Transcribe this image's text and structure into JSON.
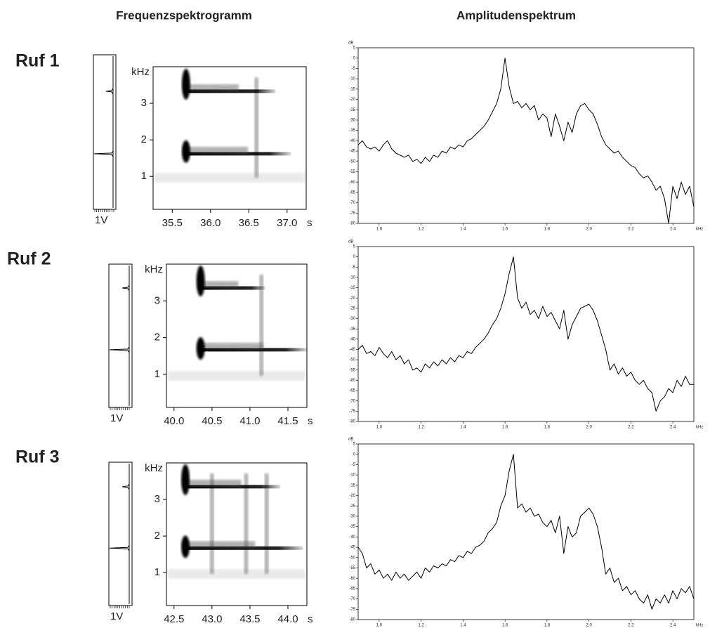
{
  "column_titles": [
    "Frequenzspektrogramm",
    "Amplitudenspektrum"
  ],
  "row_labels": [
    "Ruf 1",
    "Ruf 2",
    "Ruf 3"
  ],
  "chart_data": [
    {
      "type": "profile",
      "label": "1V",
      "ylim": [
        0.1,
        4.0
      ],
      "peaks": [
        1.62,
        3.33
      ]
    },
    {
      "type": "spectrogram",
      "y_label": "kHz",
      "x_label": "s",
      "xlim": [
        35.25,
        37.25
      ],
      "ylim": [
        0.1,
        4.0
      ],
      "xticks": [
        35.5,
        {
          "value": 36,
          "label": "36.0"
        },
        36.5,
        {
          "value": 37,
          "label": "37.0"
        }
      ],
      "yticks": [
        1,
        2,
        3
      ],
      "onset": 35.68,
      "pulses": [
        36.6
      ],
      "tones": [
        {
          "x": [
            35.65,
            37.05
          ],
          "y": 1.62
        },
        {
          "x": [
            35.65,
            36.85
          ],
          "y": 3.33
        }
      ]
    },
    {
      "type": "line",
      "y_label": "dB",
      "x_label": "kHz",
      "xlim": [
        0.9,
        2.5
      ],
      "ylim": [
        -80,
        5
      ],
      "xticks": [
        {
          "value": 1,
          "label": "1.0"
        },
        1.2,
        1.4,
        1.6,
        1.8,
        {
          "value": 2,
          "label": "2.0"
        },
        2.2,
        2.4
      ],
      "yticks": [
        5,
        0,
        -5,
        -10,
        -15,
        -20,
        -25,
        -30,
        -35,
        -40,
        -45,
        -50,
        -55,
        -60,
        -65,
        -70,
        -75,
        -80
      ],
      "x": [
        0.9,
        0.92,
        0.94,
        0.96,
        0.98,
        1.0,
        1.02,
        1.04,
        1.06,
        1.08,
        1.1,
        1.12,
        1.14,
        1.16,
        1.18,
        1.2,
        1.22,
        1.24,
        1.26,
        1.28,
        1.3,
        1.32,
        1.34,
        1.36,
        1.38,
        1.4,
        1.42,
        1.44,
        1.46,
        1.48,
        1.5,
        1.52,
        1.54,
        1.56,
        1.58,
        1.6,
        1.62,
        1.64,
        1.66,
        1.68,
        1.7,
        1.72,
        1.74,
        1.76,
        1.78,
        1.8,
        1.82,
        1.84,
        1.86,
        1.88,
        1.9,
        1.92,
        1.94,
        1.96,
        1.98,
        2.0,
        2.02,
        2.04,
        2.06,
        2.08,
        2.1,
        2.12,
        2.14,
        2.16,
        2.18,
        2.2,
        2.22,
        2.24,
        2.26,
        2.28,
        2.3,
        2.32,
        2.34,
        2.36,
        2.38,
        2.4,
        2.42,
        2.44,
        2.46,
        2.48,
        2.5
      ],
      "values": [
        -42,
        -40,
        -43,
        -44,
        -43,
        -45,
        -42,
        -40,
        -44,
        -46,
        -47,
        -48,
        -47,
        -50,
        -49,
        -51,
        -48,
        -50,
        -47,
        -48,
        -45,
        -46,
        -43,
        -44,
        -42,
        -43,
        -40,
        -39,
        -37,
        -35,
        -33,
        -30,
        -26,
        -22,
        -15,
        0,
        -14,
        -22,
        -21,
        -24,
        -22,
        -25,
        -23,
        -30,
        -27,
        -29,
        -38,
        -27,
        -33,
        -40,
        -31,
        -36,
        -27,
        -23,
        -22,
        -25,
        -27,
        -32,
        -38,
        -42,
        -44,
        -46,
        -45,
        -48,
        -50,
        -52,
        -53,
        -56,
        -58,
        -57,
        -60,
        -64,
        -62,
        -68,
        -80,
        -62,
        -68,
        -60,
        -66,
        -62,
        -72
      ]
    },
    {
      "type": "profile",
      "label": "1V",
      "ylim": [
        0.1,
        4.0
      ],
      "peaks": [
        1.67,
        3.35
      ]
    },
    {
      "type": "spectrogram",
      "y_label": "kHz",
      "x_label": "s",
      "xlim": [
        39.9,
        41.75
      ],
      "ylim": [
        0.1,
        4.0
      ],
      "xticks": [
        {
          "value": 40,
          "label": "40.0"
        },
        40.5,
        {
          "value": 41,
          "label": "41.0"
        },
        41.5
      ],
      "yticks": [
        1,
        2,
        3
      ],
      "onset": 40.35,
      "pulses": [
        41.15
      ],
      "tones": [
        {
          "x": [
            40.32,
            41.75
          ],
          "y": 1.67
        },
        {
          "x": [
            40.32,
            41.2
          ],
          "y": 3.35
        }
      ]
    },
    {
      "type": "line",
      "y_label": "dB",
      "x_label": "kHz",
      "xlim": [
        0.9,
        2.5
      ],
      "ylim": [
        -80,
        5
      ],
      "xticks": [
        {
          "value": 1,
          "label": "1.0"
        },
        1.2,
        1.4,
        1.6,
        1.8,
        {
          "value": 2,
          "label": "2.0"
        },
        2.2,
        2.4
      ],
      "yticks": [
        5,
        0,
        -5,
        -10,
        -15,
        -20,
        -25,
        -30,
        -35,
        -40,
        -45,
        -50,
        -55,
        -60,
        -65,
        -70,
        -75,
        -80
      ],
      "x": [
        0.9,
        0.92,
        0.94,
        0.96,
        0.98,
        1.0,
        1.02,
        1.04,
        1.06,
        1.08,
        1.1,
        1.12,
        1.14,
        1.16,
        1.18,
        1.2,
        1.22,
        1.24,
        1.26,
        1.28,
        1.3,
        1.32,
        1.34,
        1.36,
        1.38,
        1.4,
        1.42,
        1.44,
        1.46,
        1.48,
        1.5,
        1.52,
        1.54,
        1.56,
        1.58,
        1.6,
        1.62,
        1.64,
        1.66,
        1.68,
        1.7,
        1.72,
        1.74,
        1.76,
        1.78,
        1.8,
        1.82,
        1.84,
        1.86,
        1.88,
        1.9,
        1.92,
        1.94,
        1.96,
        1.98,
        2.0,
        2.02,
        2.04,
        2.06,
        2.08,
        2.1,
        2.12,
        2.14,
        2.16,
        2.18,
        2.2,
        2.22,
        2.24,
        2.26,
        2.28,
        2.3,
        2.32,
        2.34,
        2.36,
        2.38,
        2.4,
        2.42,
        2.44,
        2.46,
        2.48,
        2.5
      ],
      "values": [
        -45,
        -43,
        -47,
        -46,
        -48,
        -44,
        -47,
        -49,
        -46,
        -50,
        -48,
        -52,
        -50,
        -55,
        -54,
        -56,
        -52,
        -54,
        -51,
        -53,
        -50,
        -52,
        -49,
        -51,
        -48,
        -49,
        -46,
        -47,
        -44,
        -42,
        -40,
        -37,
        -33,
        -30,
        -25,
        -18,
        -8,
        0,
        -20,
        -25,
        -22,
        -28,
        -26,
        -30,
        -24,
        -29,
        -27,
        -31,
        -35,
        -26,
        -40,
        -33,
        -29,
        -25,
        -24,
        -23,
        -26,
        -31,
        -38,
        -45,
        -55,
        -52,
        -57,
        -54,
        -58,
        -56,
        -60,
        -62,
        -60,
        -64,
        -66,
        -75,
        -70,
        -68,
        -64,
        -66,
        -60,
        -63,
        -58,
        -62,
        -62
      ]
    },
    {
      "type": "profile",
      "label": "1V",
      "ylim": [
        0.1,
        4.0
      ],
      "peaks": [
        1.67,
        3.35
      ]
    },
    {
      "type": "spectrogram",
      "y_label": "kHz",
      "x_label": "s",
      "xlim": [
        42.4,
        44.25
      ],
      "ylim": [
        0.1,
        4.0
      ],
      "xticks": [
        42.5,
        {
          "value": 43,
          "label": "43.0"
        },
        43.5,
        {
          "value": 44,
          "label": "44.0"
        }
      ],
      "yticks": [
        1,
        2,
        3
      ],
      "onset": 42.65,
      "pulses": [
        43.0,
        43.45,
        43.72
      ],
      "tones": [
        {
          "x": [
            42.62,
            44.2
          ],
          "y": 1.67
        },
        {
          "x": [
            42.62,
            43.9
          ],
          "y": 3.35
        }
      ]
    },
    {
      "type": "line",
      "y_label": "dB",
      "x_label": "kHz",
      "xlim": [
        0.9,
        2.5
      ],
      "ylim": [
        -80,
        5
      ],
      "xticks": [
        {
          "value": 1,
          "label": "1.0"
        },
        1.2,
        1.4,
        1.6,
        1.8,
        {
          "value": 2,
          "label": "2.0"
        },
        2.2,
        2.4
      ],
      "yticks": [
        5,
        0,
        -5,
        -10,
        -15,
        -20,
        -25,
        -30,
        -35,
        -40,
        -45,
        -50,
        -55,
        -60,
        -65,
        -70,
        -75,
        -80
      ],
      "x": [
        0.9,
        0.92,
        0.94,
        0.96,
        0.98,
        1.0,
        1.02,
        1.04,
        1.06,
        1.08,
        1.1,
        1.12,
        1.14,
        1.16,
        1.18,
        1.2,
        1.22,
        1.24,
        1.26,
        1.28,
        1.3,
        1.32,
        1.34,
        1.36,
        1.38,
        1.4,
        1.42,
        1.44,
        1.46,
        1.48,
        1.5,
        1.52,
        1.54,
        1.56,
        1.58,
        1.6,
        1.62,
        1.64,
        1.66,
        1.68,
        1.7,
        1.72,
        1.74,
        1.76,
        1.78,
        1.8,
        1.82,
        1.84,
        1.86,
        1.88,
        1.9,
        1.92,
        1.94,
        1.96,
        1.98,
        2.0,
        2.02,
        2.04,
        2.06,
        2.08,
        2.1,
        2.12,
        2.14,
        2.16,
        2.18,
        2.2,
        2.22,
        2.24,
        2.26,
        2.28,
        2.3,
        2.32,
        2.34,
        2.36,
        2.38,
        2.4,
        2.42,
        2.44,
        2.46,
        2.48,
        2.5
      ],
      "values": [
        -45,
        -48,
        -55,
        -53,
        -58,
        -56,
        -60,
        -58,
        -61,
        -57,
        -60,
        -58,
        -61,
        -59,
        -57,
        -60,
        -55,
        -57,
        -54,
        -55,
        -53,
        -54,
        -51,
        -52,
        -49,
        -50,
        -47,
        -48,
        -45,
        -44,
        -42,
        -38,
        -36,
        -33,
        -25,
        -20,
        -8,
        0,
        -26,
        -24,
        -28,
        -26,
        -30,
        -29,
        -33,
        -35,
        -32,
        -38,
        -30,
        -48,
        -35,
        -40,
        -38,
        -30,
        -28,
        -26,
        -29,
        -35,
        -45,
        -58,
        -55,
        -62,
        -60,
        -66,
        -64,
        -68,
        -66,
        -70,
        -72,
        -68,
        -75,
        -70,
        -72,
        -68,
        -72,
        -66,
        -70,
        -65,
        -67,
        -64,
        -70
      ]
    }
  ]
}
